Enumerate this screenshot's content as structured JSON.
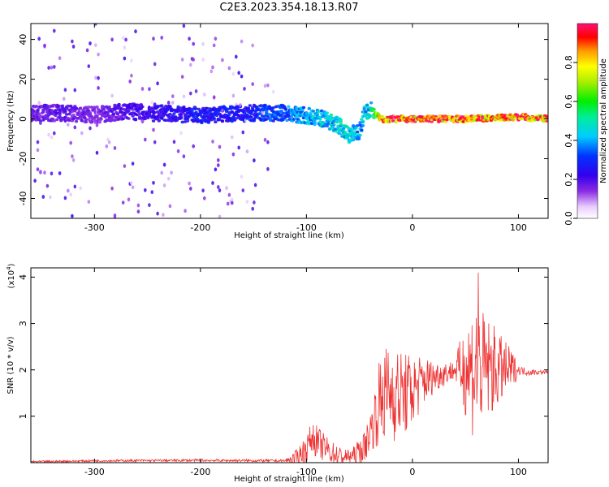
{
  "title": "C2E3.2023.354.18.13.R07",
  "colorbar": {
    "label": "Normalized spectral amplitude",
    "ticks": [
      "0.0",
      "0.2",
      "0.4",
      "0.6",
      "0.8"
    ],
    "tick_values": [
      0.0,
      0.2,
      0.4,
      0.6,
      0.8
    ],
    "range": [
      0,
      1
    ]
  },
  "chart_data": [
    {
      "type": "heatmap",
      "xlabel": "Height of straight line (km)",
      "ylabel": "Frequency (Hz)",
      "xlim": [
        -360,
        128
      ],
      "ylim": [
        -50,
        48
      ],
      "x_ticks": [
        -300,
        -200,
        -100,
        0,
        100
      ],
      "x_tick_labels": [
        "-300",
        "-200",
        "-100",
        "0",
        "100"
      ],
      "y_ticks": [
        -40,
        -20,
        0,
        20,
        40
      ],
      "y_tick_labels": [
        "-40",
        "-20",
        "0",
        "20",
        "40"
      ],
      "ridge": {
        "x": [
          -360,
          -330,
          -300,
          -270,
          -250,
          -200,
          -150,
          -120,
          -90,
          -70,
          -60,
          -50,
          -45,
          -40,
          -30,
          0,
          50,
          100,
          128
        ],
        "frequency": [
          3,
          3,
          2,
          4,
          3,
          2,
          3,
          3,
          1,
          -3,
          -8,
          -6,
          3,
          5,
          0,
          0,
          0,
          1,
          0
        ],
        "amplitude": [
          0.18,
          0.2,
          0.16,
          0.22,
          0.24,
          0.28,
          0.3,
          0.38,
          0.45,
          0.5,
          0.5,
          0.42,
          0.48,
          0.5,
          0.95,
          0.98,
          0.95,
          0.95,
          0.95
        ]
      }
    },
    {
      "type": "line",
      "xlabel": "Height of straight line (km)",
      "ylabel": "SNR (10 * v/v)",
      "y_multiplier": "(x10",
      "y_multiplier_exp": "4",
      "y_multiplier_close": ")",
      "xlim": [
        -360,
        128
      ],
      "ylim": [
        0,
        4.2
      ],
      "x_ticks": [
        -300,
        -200,
        -100,
        0,
        100
      ],
      "x_tick_labels": [
        "-300",
        "-200",
        "-100",
        "0",
        "100"
      ],
      "y_ticks": [
        1,
        2,
        3,
        4
      ],
      "y_tick_labels": [
        "1",
        "2",
        "3",
        "4"
      ],
      "series_color": "#ee3333",
      "envelope": {
        "x": [
          -360,
          -300,
          -200,
          -120,
          -110,
          -100,
          -95,
          -85,
          -75,
          -65,
          -55,
          -45,
          -35,
          -30,
          -20,
          -10,
          0,
          10,
          20,
          40,
          50,
          55,
          60,
          65,
          70,
          80,
          90,
          100,
          110,
          128
        ],
        "snr": [
          0.02,
          0.04,
          0.05,
          0.04,
          0.1,
          0.3,
          0.55,
          0.35,
          0.2,
          0.12,
          0.15,
          0.35,
          1.0,
          1.4,
          1.55,
          1.45,
          1.55,
          1.75,
          1.85,
          2.0,
          2.05,
          2.0,
          2.1,
          2.0,
          2.05,
          2.0,
          2.0,
          2.0,
          1.95,
          1.95
        ]
      },
      "noise_scale": {
        "x": [
          -360,
          -120,
          -100,
          -90,
          -60,
          -40,
          -30,
          -20,
          0,
          20,
          40,
          48,
          55,
          60,
          65,
          75,
          85,
          95,
          100,
          128
        ],
        "amp": [
          0.02,
          0.03,
          0.3,
          0.35,
          0.15,
          0.4,
          1.0,
          1.1,
          0.8,
          0.35,
          0.2,
          0.9,
          1.4,
          1.6,
          1.3,
          1.0,
          0.7,
          0.4,
          0.1,
          0.03
        ]
      },
      "peak": {
        "x": 62,
        "snr": 4.1
      }
    }
  ]
}
